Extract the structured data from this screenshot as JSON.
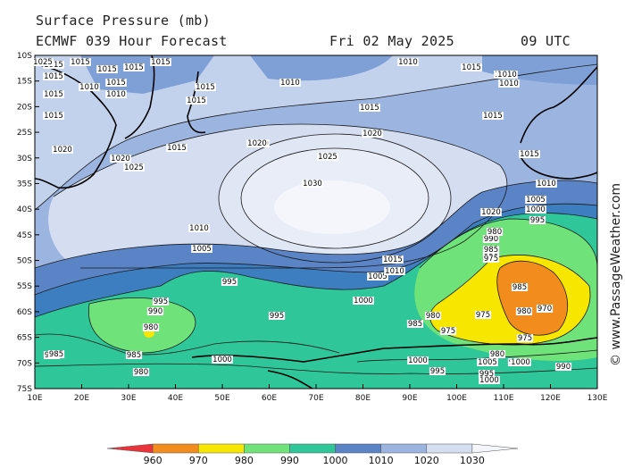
{
  "header": {
    "title": "Surface Pressure (mb)",
    "model": "ECMWF 039 Hour Forecast",
    "date": "Fri 02 May 2025",
    "time": "09 UTC"
  },
  "credit": "© www.PassageWeather.com",
  "map": {
    "lat_labels": [
      "10S",
      "15S",
      "20S",
      "25S",
      "30S",
      "35S",
      "40S",
      "45S",
      "50S",
      "55S",
      "60S",
      "65S",
      "70S",
      "75S"
    ],
    "lon_labels": [
      "10E",
      "20E",
      "30E",
      "40E",
      "50E",
      "60E",
      "70E",
      "80E",
      "90E",
      "100E",
      "110E",
      "120E",
      "130E"
    ],
    "isobar_labels": [
      {
        "v": "1015"
      },
      {
        "v": "1015"
      },
      {
        "v": "1015"
      },
      {
        "v": "1015"
      },
      {
        "v": "1015"
      },
      {
        "v": "1015"
      },
      {
        "v": "1015"
      },
      {
        "v": "1010"
      },
      {
        "v": "1010"
      },
      {
        "v": "1010"
      },
      {
        "v": "1010"
      },
      {
        "v": "1015"
      },
      {
        "v": "1015"
      },
      {
        "v": "1015"
      },
      {
        "v": "1015"
      },
      {
        "v": "1015"
      },
      {
        "v": "1020"
      },
      {
        "v": "1020"
      },
      {
        "v": "1025"
      },
      {
        "v": "1030"
      },
      {
        "v": "1030"
      },
      {
        "v": "1025"
      },
      {
        "v": "1020"
      },
      {
        "v": "1020"
      },
      {
        "v": "1015"
      },
      {
        "v": "1010"
      },
      {
        "v": "1010"
      },
      {
        "v": "1005"
      },
      {
        "v": "1005"
      },
      {
        "v": "1000"
      },
      {
        "v": "995"
      },
      {
        "v": "995"
      },
      {
        "v": "995"
      },
      {
        "v": "990"
      },
      {
        "v": "980"
      },
      {
        "v": "985"
      },
      {
        "v": "985"
      },
      {
        "v": "980"
      },
      {
        "v": "990"
      },
      {
        "v": "1005"
      },
      {
        "v": "1000"
      },
      {
        "v": "995"
      },
      {
        "v": "990"
      },
      {
        "v": "985"
      },
      {
        "v": "980"
      },
      {
        "v": "975"
      },
      {
        "v": "985"
      },
      {
        "v": "980"
      },
      {
        "v": "970"
      },
      {
        "v": "975"
      },
      {
        "v": "975"
      },
      {
        "v": "980"
      },
      {
        "v": "975"
      },
      {
        "v": "985"
      },
      {
        "v": "980"
      },
      {
        "v": "985"
      },
      {
        "v": "990"
      },
      {
        "v": "995"
      },
      {
        "v": "1000"
      },
      {
        "v": "1005"
      },
      {
        "v": "1000"
      },
      {
        "v": "995"
      },
      {
        "v": "1000"
      },
      {
        "v": "1010"
      },
      {
        "v": "1015"
      },
      {
        "v": "1020"
      },
      {
        "v": "1025"
      },
      {
        "v": "1015"
      },
      {
        "v": "1020"
      },
      {
        "v": "1025"
      },
      {
        "v": "1015"
      },
      {
        "v": "1010"
      },
      {
        "v": "1015"
      },
      {
        "v": "1010"
      },
      {
        "v": "1000"
      },
      {
        "v": "985"
      },
      {
        "v": "1010"
      }
    ]
  },
  "legend": {
    "ticks": [
      "960",
      "970",
      "980",
      "990",
      "1000",
      "1010",
      "1020",
      "1030"
    ],
    "colors": [
      "#e8343a",
      "#f28c1c",
      "#f7e600",
      "#6fe37a",
      "#2fc79a",
      "#5b84c6",
      "#9cb5e0",
      "#d5def0",
      "#f4f6fb"
    ]
  }
}
